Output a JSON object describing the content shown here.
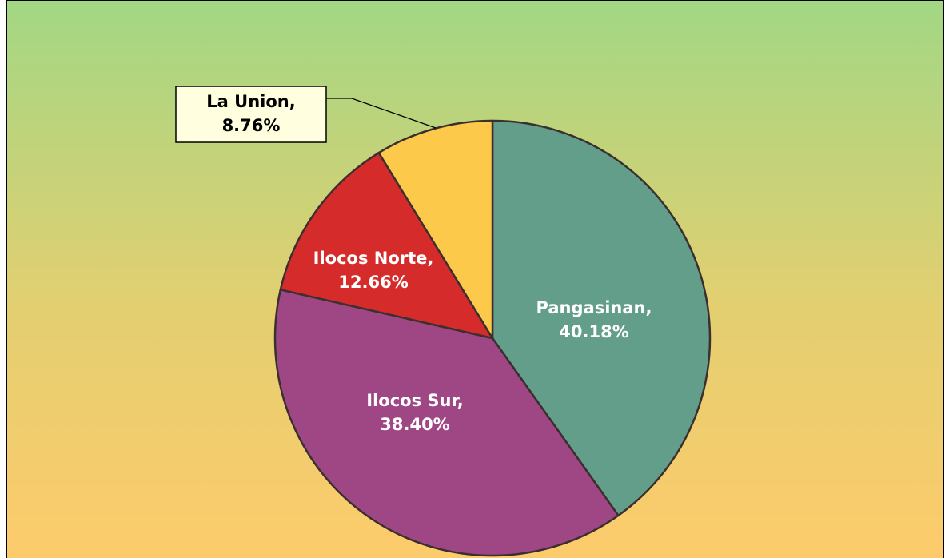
{
  "chart_data": {
    "type": "pie",
    "categories": [
      "Pangasinan",
      "Ilocos Sur",
      "Ilocos Norte",
      "La Union"
    ],
    "values": [
      40.18,
      38.4,
      12.66,
      8.76
    ],
    "value_labels": [
      "Pangasinan,\n40.18%",
      "Ilocos Sur,\n38.40%",
      "Ilocos Norte,\n12.66%",
      "La Union,\n8.76%"
    ],
    "colors": [
      "#639e8b",
      "#9e4784",
      "#d62b2b",
      "#fdc94a"
    ]
  }
}
